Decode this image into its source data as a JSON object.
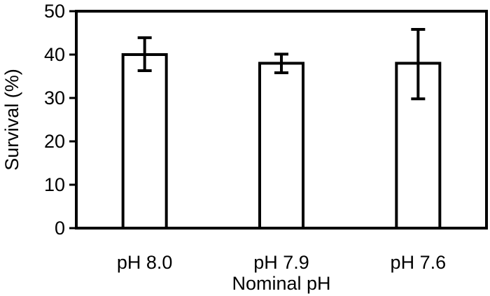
{
  "chart_data": {
    "type": "bar",
    "categories": [
      "pH 8.0",
      "pH 7.9",
      "pH 7.6"
    ],
    "values": [
      40,
      38,
      38
    ],
    "error_low": [
      36.3,
      35.8,
      29.8
    ],
    "error_high": [
      43.9,
      40.1,
      45.8
    ],
    "xlabel": "Nominal pH",
    "ylabel": "Survival (%)",
    "ylim": [
      0,
      50
    ],
    "yticks": [
      "0",
      "10",
      "20",
      "30",
      "40",
      "50"
    ],
    "grid": false,
    "legend": "none",
    "colors": {
      "bar_fill": "#ffffff",
      "bar_stroke": "#000000",
      "axis": "#000000"
    }
  }
}
